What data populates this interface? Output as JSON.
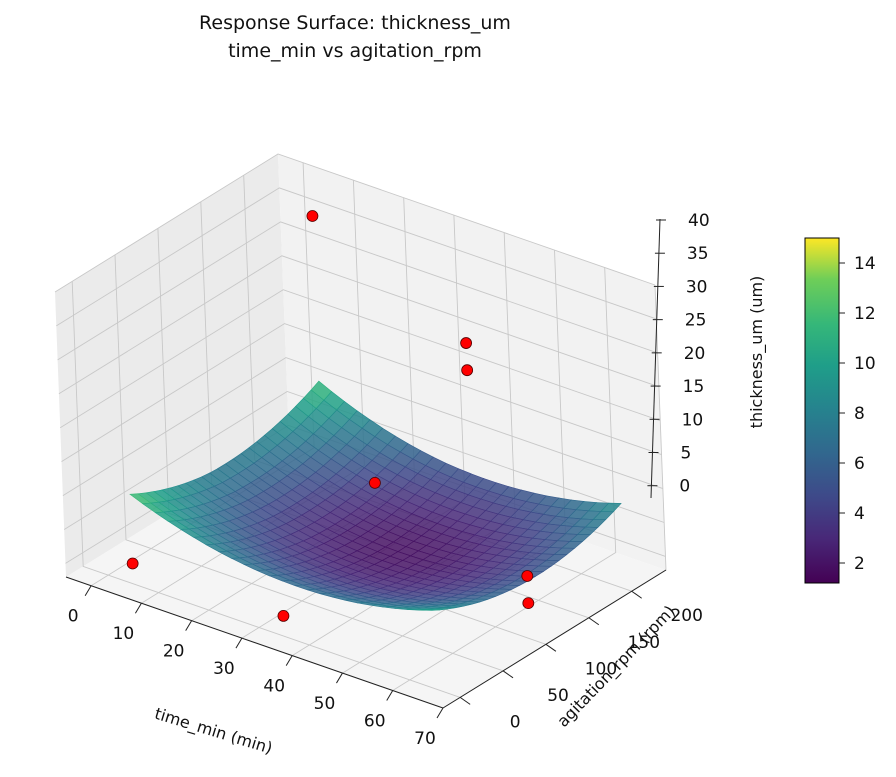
{
  "chart_data": {
    "type": "surface3d",
    "title": "Response Surface: thickness_um",
    "subtitle": "time_min vs agitation_rpm",
    "xlabel": "time_min (min)",
    "ylabel": "agitation_rpm (rpm)",
    "zlabel": "thickness_um (um)",
    "xlim": [
      -5,
      70
    ],
    "ylim": [
      -20,
      240
    ],
    "zlim": [
      -2,
      40
    ],
    "x_ticks": [
      "0",
      "10",
      "20",
      "30",
      "40",
      "50",
      "60",
      "70"
    ],
    "y_ticks": [
      "0",
      "50",
      "100",
      "150",
      "200"
    ],
    "z_ticks": [
      "0",
      "5",
      "10",
      "15",
      "20",
      "25",
      "30",
      "35",
      "40"
    ],
    "surface_x_range": [
      5,
      65
    ],
    "surface_y_range": [
      0,
      220
    ],
    "surface_z_min": 1.2,
    "surface_z_max": 15,
    "colormap": "viridis",
    "colorbar": {
      "ticks": [
        "2",
        "4",
        "6",
        "8",
        "10",
        "12",
        "14"
      ],
      "range": [
        1.2,
        15
      ]
    },
    "points_color": "#ff0000",
    "points": [
      {
        "x": 5,
        "y": 220,
        "z": 35
      },
      {
        "x": 5,
        "y": 0,
        "z": 1
      },
      {
        "x": 35,
        "y": 220,
        "z": 24
      },
      {
        "x": 35,
        "y": 220,
        "z": 20
      },
      {
        "x": 35,
        "y": 110,
        "z": 12
      },
      {
        "x": 35,
        "y": 0,
        "z": 1
      },
      {
        "x": 65,
        "y": 110,
        "z": 6
      },
      {
        "x": 65,
        "y": 110,
        "z": 2
      }
    ]
  }
}
